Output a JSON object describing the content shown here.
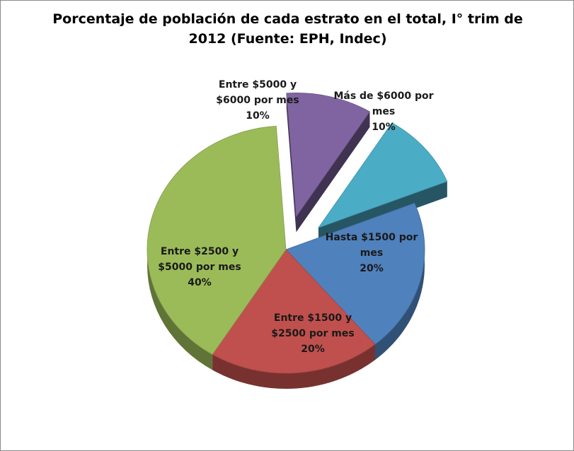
{
  "chart_data": {
    "type": "pie",
    "title_line1": "Porcentaje de población de cada estrato en el total, I° trim de",
    "title_line2": "2012 (Fuente: EPH, Indec)",
    "slices": [
      {
        "label_lines": [
          "Hasta $1500 por",
          "mes"
        ],
        "percent_text": "20%",
        "value": 20,
        "color": "#4f81bd",
        "exploded": false
      },
      {
        "label_lines": [
          "Entre $1500 y",
          "$2500 por mes"
        ],
        "percent_text": "20%",
        "value": 20,
        "color": "#c0504d",
        "exploded": false
      },
      {
        "label_lines": [
          "Entre $2500 y",
          "$5000 por mes"
        ],
        "percent_text": "40%",
        "value": 40,
        "color": "#9bbb59",
        "exploded": false
      },
      {
        "label_lines": [
          "Entre $5000 y",
          "$6000 por mes"
        ],
        "percent_text": "10%",
        "value": 10,
        "color": "#8064a2",
        "exploded": true
      },
      {
        "label_lines": [
          "Más de $6000 por",
          "mes"
        ],
        "percent_text": "10%",
        "value": 10,
        "color": "#4bacc6",
        "exploded": true
      }
    ],
    "legend": "none",
    "style": "3d-exploded-pie"
  }
}
